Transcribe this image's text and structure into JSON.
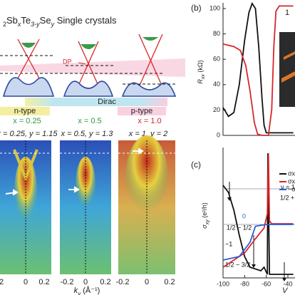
{
  "figure": {
    "title": [
      "2",
      "Sb",
      "x",
      "Te",
      "3-y",
      "Se",
      "y",
      " Single crystals"
    ],
    "dp_label": "DP",
    "dirac_label": "Dirac",
    "n_type": "n-type",
    "p_type": "p-type",
    "doping": [
      "x = 0.25",
      "x = 0.5",
      "x = 1.0"
    ],
    "arpes_titles": [
      "x = 0.25, y = 1.15",
      "x = 0.5, y = 1.3",
      "x = 1, y = 2"
    ],
    "arpes_ticks": [
      [
        "2",
        "0",
        "0.2"
      ],
      [
        "-0.2",
        "0",
        "0.2"
      ],
      [
        "-0.2",
        "0",
        "0.2"
      ]
    ],
    "k_label": "k",
    "k_sub": "y",
    "k_unit": " (Å⁻¹)"
  },
  "chart_data": [
    {
      "type": "line",
      "panel": "(b)",
      "y_label": "R",
      "y_sub": "xx",
      "y_unit": " (kΩ)",
      "corner_label": "1",
      "xlim": [
        -100,
        -40
      ],
      "ylim": [
        0,
        100
      ],
      "yticks": [
        0,
        20,
        40,
        60,
        80,
        100
      ],
      "series": [
        {
          "color": "#111111",
          "x": [
            -100,
            -95,
            -90,
            -85,
            -80,
            -76,
            -73,
            -70,
            -67,
            -64,
            -62,
            -60,
            -55,
            -45,
            -35
          ],
          "values": [
            22,
            15,
            18,
            40,
            75,
            97,
            104,
            100,
            70,
            30,
            8,
            2,
            2,
            2,
            2
          ]
        },
        {
          "color": "#d62728",
          "x": [
            -100,
            -90,
            -84,
            -79,
            -75,
            -71,
            -68,
            -64,
            -58,
            -55,
            -53,
            -51,
            -48,
            -35
          ],
          "values": [
            72,
            70,
            67,
            55,
            35,
            10,
            1,
            0,
            0,
            20,
            70,
            98,
            102,
            102
          ]
        }
      ]
    },
    {
      "type": "line",
      "panel": "(c)",
      "y_label": "σ",
      "y_sub": "xy",
      "y_unit": " (e²/h)",
      "x_label": "V",
      "xlim": [
        -100,
        -40
      ],
      "xticks": [
        -100,
        -80,
        -60,
        -40
      ],
      "ylim": [
        -1.5,
        2
      ],
      "annotations": [
        "ν = 1",
        "1/2 + 1/",
        "0",
        "1/2 − 1/2",
        "−1",
        "1/2 − 3/2"
      ],
      "series": [
        {
          "name": "σxx",
          "color": "#111111",
          "x": [
            -100,
            -95,
            -90,
            -85,
            -80,
            -75,
            -65,
            -62,
            -59,
            -58.5,
            -57,
            -50,
            -35
          ],
          "values": [
            1.1,
            0.9,
            0.4,
            -0.3,
            -0.9,
            -1.2,
            -1.3,
            -1.2,
            -1.4,
            2,
            -1.4,
            -1.4,
            -1.4
          ]
        },
        {
          "name": "σxy",
          "color": "#d62728",
          "x": [
            -100,
            -90,
            -80,
            -70,
            -62,
            -59,
            -58,
            -57,
            -55,
            -35
          ],
          "values": [
            -1.2,
            -1.0,
            -0.8,
            -0.4,
            -0.1,
            0.3,
            2,
            0.1,
            0.02,
            0.02
          ]
        },
        {
          "name": "−σxy",
          "color": "#2a5bd7",
          "x": [
            -100,
            -85,
            -75,
            -70,
            -60,
            -35
          ],
          "values": [
            -1,
            -0.9,
            -0.5,
            -0.05,
            0,
            0
          ]
        }
      ]
    }
  ]
}
